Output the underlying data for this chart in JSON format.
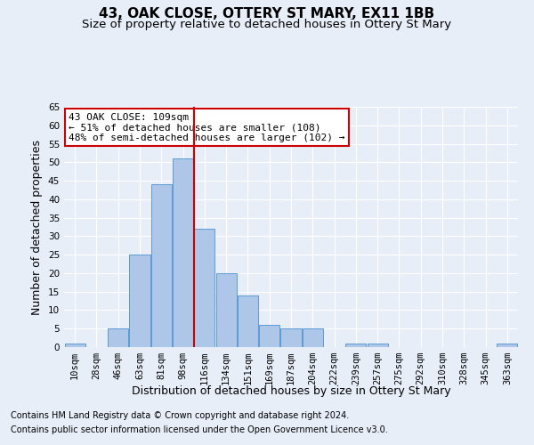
{
  "title": "43, OAK CLOSE, OTTERY ST MARY, EX11 1BB",
  "subtitle": "Size of property relative to detached houses in Ottery St Mary",
  "xlabel": "Distribution of detached houses by size in Ottery St Mary",
  "ylabel": "Number of detached properties",
  "bin_labels": [
    "10sqm",
    "28sqm",
    "46sqm",
    "63sqm",
    "81sqm",
    "98sqm",
    "116sqm",
    "134sqm",
    "151sqm",
    "169sqm",
    "187sqm",
    "204sqm",
    "222sqm",
    "239sqm",
    "257sqm",
    "275sqm",
    "292sqm",
    "310sqm",
    "328sqm",
    "345sqm",
    "363sqm"
  ],
  "bar_values": [
    1,
    0,
    5,
    25,
    44,
    51,
    32,
    20,
    14,
    6,
    5,
    5,
    0,
    1,
    1,
    0,
    0,
    0,
    0,
    0,
    1
  ],
  "bar_color": "#aec6e8",
  "bar_edge_color": "#5b9bd5",
  "vline_pos": 5.5,
  "vline_color": "#cc0000",
  "annotation_text": "43 OAK CLOSE: 109sqm\n← 51% of detached houses are smaller (108)\n48% of semi-detached houses are larger (102) →",
  "annotation_box_color": "#ffffff",
  "annotation_box_edge": "#cc0000",
  "ylim": [
    0,
    65
  ],
  "yticks": [
    0,
    5,
    10,
    15,
    20,
    25,
    30,
    35,
    40,
    45,
    50,
    55,
    60,
    65
  ],
  "footer_line1": "Contains HM Land Registry data © Crown copyright and database right 2024.",
  "footer_line2": "Contains public sector information licensed under the Open Government Licence v3.0.",
  "bg_color": "#e8eef8",
  "grid_color": "#ffffff",
  "title_fontsize": 11,
  "subtitle_fontsize": 9.5,
  "axis_label_fontsize": 9,
  "tick_fontsize": 7.5,
  "footer_fontsize": 7
}
